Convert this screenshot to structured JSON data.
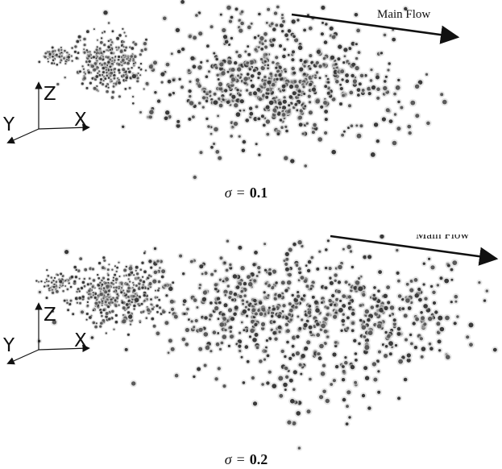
{
  "panels": [
    {
      "flow_label": "Main Flow",
      "axes": {
        "z": "Z",
        "y": "Y",
        "x": "X"
      },
      "caption": {
        "symbol": "σ",
        "equals": "=",
        "value": "0.1"
      }
    },
    {
      "flow_label": "Main Flow",
      "axes": {
        "z": "Z",
        "y": "Y",
        "x": "X"
      },
      "caption": {
        "symbol": "σ",
        "equals": "=",
        "value": "0.2"
      }
    }
  ],
  "colors": {
    "ink": "#111111",
    "particle": "#4a4a4a",
    "halo": "#cfcfcf"
  }
}
